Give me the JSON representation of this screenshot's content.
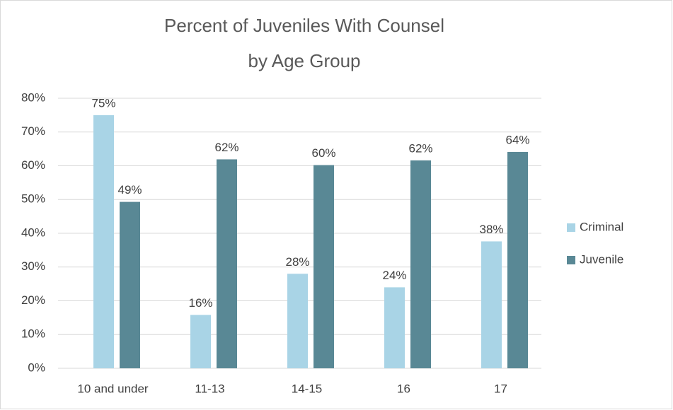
{
  "chart_data": {
    "type": "bar",
    "title": [
      "Percent of Juveniles With Counsel",
      "by Age Group"
    ],
    "categories": [
      "10 and under",
      "11-13",
      "14-15",
      "16",
      "17"
    ],
    "series": [
      {
        "name": "Criminal",
        "color": "#a9d4e6",
        "values": [
          75,
          15.8,
          28,
          24,
          37.6
        ],
        "value_labels": [
          "75%",
          "16%",
          "28%",
          "24%",
          "38%"
        ]
      },
      {
        "name": "Juvenile",
        "color": "#598895",
        "values": [
          49.3,
          61.9,
          60.2,
          61.6,
          64.1
        ],
        "value_labels": [
          "49%",
          "62%",
          "60%",
          "62%",
          "64%"
        ]
      }
    ],
    "ylim": [
      0,
      80
    ],
    "yticks": [
      {
        "value": 0,
        "label": "0%"
      },
      {
        "value": 10,
        "label": "10%"
      },
      {
        "value": 20,
        "label": "20%"
      },
      {
        "value": 30,
        "label": "30%"
      },
      {
        "value": 40,
        "label": "40%"
      },
      {
        "value": 50,
        "label": "50%"
      },
      {
        "value": 60,
        "label": "60%"
      },
      {
        "value": 70,
        "label": "70%"
      },
      {
        "value": 80,
        "label": "80%"
      }
    ],
    "grid": true,
    "legend": "right"
  }
}
